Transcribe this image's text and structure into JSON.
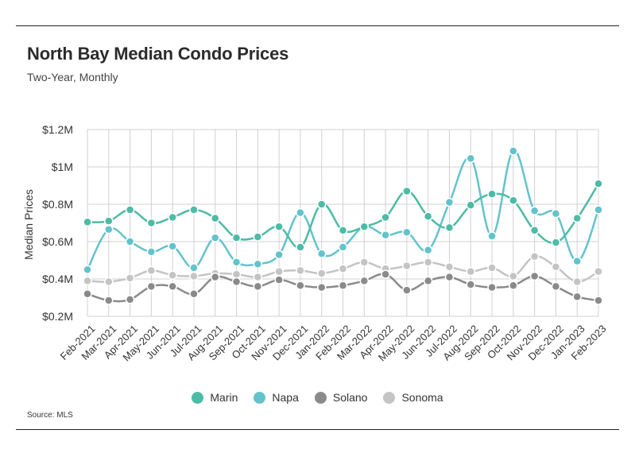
{
  "header": {
    "title": "North Bay Median Condo Prices",
    "subtitle": "Two-Year, Monthly"
  },
  "footer": {
    "source": "Source:  MLS"
  },
  "chart_data": {
    "type": "line",
    "title": "North Bay Median Condo Prices",
    "subtitle": "Two-Year, Monthly",
    "xlabel": "",
    "ylabel": "Median Prices",
    "ylim": [
      0.2,
      1.2
    ],
    "yticks": [
      {
        "value": 0.2,
        "label": "$0.2M"
      },
      {
        "value": 0.4,
        "label": "$0.4M"
      },
      {
        "value": 0.6,
        "label": "$0.6M"
      },
      {
        "value": 0.8,
        "label": "$0.8M"
      },
      {
        "value": 1.0,
        "label": "$1M"
      },
      {
        "value": 1.2,
        "label": "$1.2M"
      }
    ],
    "grid": true,
    "legend_position": "bottom",
    "categories": [
      "Feb-2021",
      "Mar-2021",
      "Apr-2021",
      "May-2021",
      "Jun-2021",
      "Jul-2021",
      "Aug-2021",
      "Sep-2021",
      "Oct-2021",
      "Nov-2021",
      "Dec-2021",
      "Jan-2022",
      "Feb-2022",
      "Mar-2022",
      "Apr-2022",
      "May-2022",
      "Jun-2022",
      "Jul-2022",
      "Aug-2022",
      "Sep-2022",
      "Oct-2022",
      "Nov-2022",
      "Dec-2022",
      "Jan-2023",
      "Feb-2023"
    ],
    "series": [
      {
        "name": "Marin",
        "color": "#4dbba5",
        "values": [
          0.705,
          0.71,
          0.77,
          0.7,
          0.73,
          0.77,
          0.725,
          0.62,
          0.625,
          0.68,
          0.57,
          0.8,
          0.66,
          0.68,
          0.73,
          0.87,
          0.735,
          0.675,
          0.795,
          0.855,
          0.82,
          0.66,
          0.595,
          0.725,
          0.91
        ]
      },
      {
        "name": "Napa",
        "color": "#63c3cc",
        "values": [
          0.45,
          0.665,
          0.6,
          0.545,
          0.575,
          0.46,
          0.62,
          0.49,
          0.48,
          0.53,
          0.755,
          0.535,
          0.57,
          0.68,
          0.635,
          0.65,
          0.555,
          0.81,
          1.045,
          0.63,
          1.085,
          0.765,
          0.75,
          0.495,
          0.77
        ]
      },
      {
        "name": "Solano",
        "color": "#8a8a8a",
        "values": [
          0.32,
          0.285,
          0.29,
          0.36,
          0.36,
          0.32,
          0.41,
          0.385,
          0.36,
          0.395,
          0.365,
          0.355,
          0.365,
          0.39,
          0.425,
          0.34,
          0.39,
          0.41,
          0.37,
          0.355,
          0.365,
          0.415,
          0.36,
          0.305,
          0.285
        ]
      },
      {
        "name": "Sonoma",
        "color": "#c4c4c4",
        "values": [
          0.39,
          0.385,
          0.405,
          0.445,
          0.42,
          0.415,
          0.43,
          0.425,
          0.41,
          0.44,
          0.445,
          0.43,
          0.455,
          0.49,
          0.455,
          0.47,
          0.49,
          0.465,
          0.44,
          0.46,
          0.415,
          0.52,
          0.465,
          0.385,
          0.44
        ]
      }
    ]
  }
}
